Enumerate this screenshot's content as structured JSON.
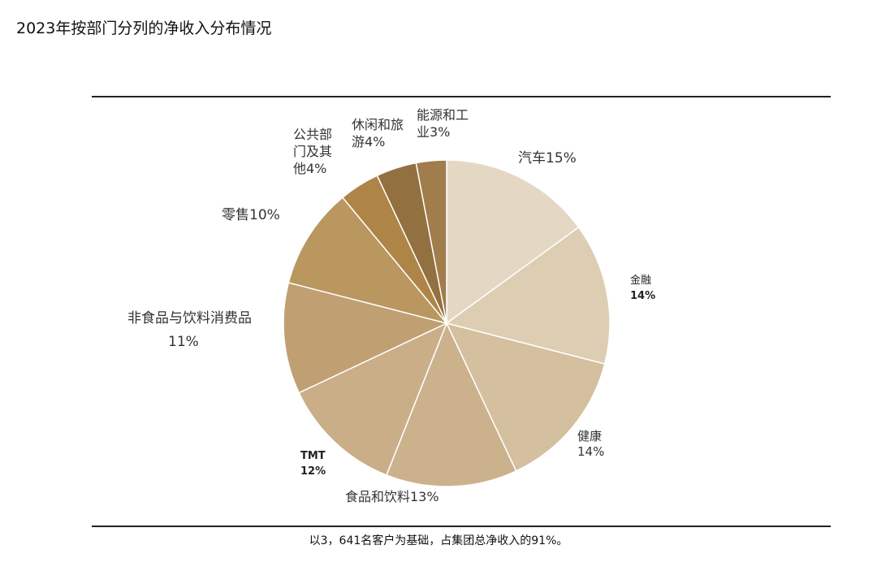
{
  "title": "2023年按部门分列的净收入分布情况",
  "footnote": "以3，641名客户为基础，占集团总净收入的91%。",
  "chart_data": {
    "type": "pie",
    "title": "2023年按部门分列的净收入分布情况",
    "slices": [
      {
        "label": "汽车15%",
        "value": 15,
        "color": "#e4d8c5"
      },
      {
        "label": "金融",
        "value_text": "14%",
        "value": 14,
        "color": "#ddcdb3"
      },
      {
        "label": "健康",
        "value_text": "14%",
        "value": 14,
        "color": "#d4bf9e"
      },
      {
        "label": "食品和饮料13%",
        "value": 13,
        "color": "#cbb28d"
      },
      {
        "label": "TMT",
        "value_text": "12%",
        "value": 12,
        "color": "#c9ae88"
      },
      {
        "label": "非食品与饮料消费品",
        "value_text": "11%",
        "value": 11,
        "color": "#c0a072"
      },
      {
        "label": "零售10%",
        "value": 10,
        "color": "#b9975f"
      },
      {
        "label_lines": [
          "公共部",
          "门及其",
          "他4%"
        ],
        "value": 4,
        "color": "#ae8447"
      },
      {
        "label_lines": [
          "休闲和旅",
          "游4%"
        ],
        "value": 4,
        "color": "#93703f"
      },
      {
        "label_lines": [
          "能源和工",
          "业3%"
        ],
        "value": 3,
        "color": "#a07d4b"
      }
    ]
  }
}
